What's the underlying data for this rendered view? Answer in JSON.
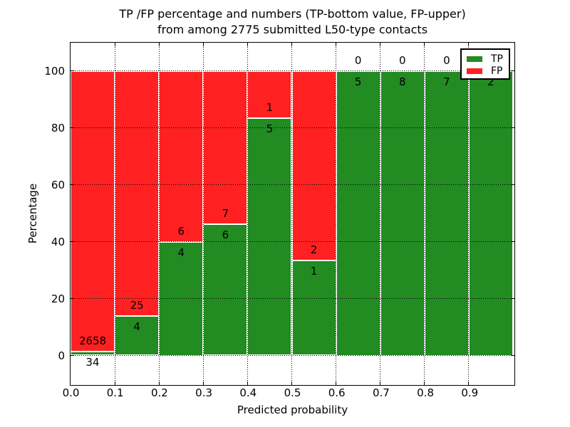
{
  "title": {
    "line1": "TP /FP percentage and numbers (TP-bottom value, FP-upper)",
    "line2": "from among 2775 submitted L50-type contacts"
  },
  "axes": {
    "xlabel": "Predicted probability",
    "ylabel": "Percentage"
  },
  "colors": {
    "tp": "#228B22",
    "fp": "#FF2121",
    "grid": "#000000",
    "bar_edge": "#ffffff",
    "frame": "#000000",
    "background": "#ffffff"
  },
  "legend": {
    "entries": [
      {
        "label": "TP",
        "color": "#228B22"
      },
      {
        "label": "FP",
        "color": "#FF2121"
      }
    ]
  },
  "chart_data": {
    "type": "bar",
    "subtype": "stacked-percentage-histogram",
    "title": "TP /FP percentage and numbers (TP-bottom value, FP-upper) from among 2775 submitted L50-type contacts",
    "xlabel": "Predicted probability",
    "ylabel": "Percentage",
    "xlim": [
      0.0,
      1.0
    ],
    "ylim": [
      -10,
      110
    ],
    "grid": true,
    "legend_position": "upper right",
    "bin_width": 0.1,
    "xticks": [
      0.0,
      0.1,
      0.2,
      0.3,
      0.4,
      0.5,
      0.6,
      0.7,
      0.8,
      0.9
    ],
    "xtick_labels": [
      "0.0",
      "0.1",
      "0.2",
      "0.3",
      "0.4",
      "0.5",
      "0.6",
      "0.7",
      "0.8",
      "0.9"
    ],
    "yticks": [
      0,
      20,
      40,
      60,
      80,
      100
    ],
    "ytick_labels": [
      "0",
      "20",
      "40",
      "60",
      "80",
      "100"
    ],
    "series_names": [
      "TP",
      "FP"
    ],
    "bins": [
      {
        "x0": 0.0,
        "x1": 0.1,
        "tp": 34,
        "fp": 2658,
        "tp_pct": 1.26,
        "tp_label": "34",
        "fp_label": "2658"
      },
      {
        "x0": 0.1,
        "x1": 0.2,
        "tp": 4,
        "fp": 25,
        "tp_pct": 13.79,
        "tp_label": "4",
        "fp_label": "25"
      },
      {
        "x0": 0.2,
        "x1": 0.3,
        "tp": 4,
        "fp": 6,
        "tp_pct": 40.0,
        "tp_label": "4",
        "fp_label": "6"
      },
      {
        "x0": 0.3,
        "x1": 0.4,
        "tp": 6,
        "fp": 7,
        "tp_pct": 46.15,
        "tp_label": "6",
        "fp_label": "7"
      },
      {
        "x0": 0.4,
        "x1": 0.5,
        "tp": 5,
        "fp": 1,
        "tp_pct": 83.33,
        "tp_label": "5",
        "fp_label": "1"
      },
      {
        "x0": 0.5,
        "x1": 0.6,
        "tp": 1,
        "fp": 2,
        "tp_pct": 33.33,
        "tp_label": "1",
        "fp_label": "2"
      },
      {
        "x0": 0.6,
        "x1": 0.7,
        "tp": 5,
        "fp": 0,
        "tp_pct": 100,
        "tp_label": "5",
        "fp_label": "0"
      },
      {
        "x0": 0.7,
        "x1": 0.8,
        "tp": 8,
        "fp": 0,
        "tp_pct": 100,
        "tp_label": "8",
        "fp_label": "0"
      },
      {
        "x0": 0.8,
        "x1": 0.9,
        "tp": 7,
        "fp": 0,
        "tp_pct": 100,
        "tp_label": "7",
        "fp_label": "0"
      },
      {
        "x0": 0.9,
        "x1": 1.0,
        "tp": 2,
        "fp": 0,
        "tp_pct": 100,
        "tp_label": "2",
        "fp_label": ""
      }
    ]
  }
}
